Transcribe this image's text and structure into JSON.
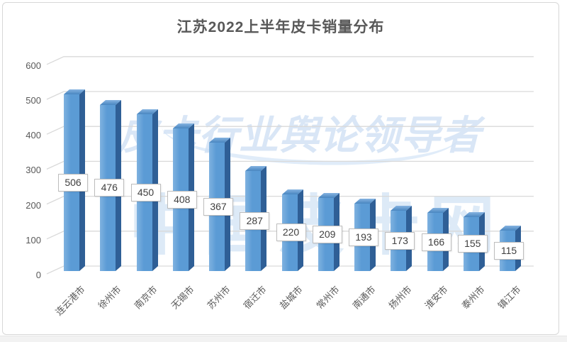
{
  "title": "江苏2022上半年皮卡销量分布",
  "watermark": {
    "tagline": "皮卡行业舆论领导者",
    "brand": "中国皮卡网"
  },
  "colors": {
    "bar_front": "#5b9bd5",
    "bar_side": "#2f5f96",
    "bar_top": "#4e8ac3",
    "gridline": "#d9d9d9",
    "axis_text": "#595959",
    "title_text": "#595959",
    "data_label_text": "#404040",
    "data_label_border": "#bdbdbd",
    "watermark_blue": "#cfe0f4"
  },
  "chart_data": {
    "type": "bar",
    "style": "3d-column",
    "title": "江苏2022上半年皮卡销量分布",
    "categories": [
      "连云港市",
      "徐州市",
      "南京市",
      "无锡市",
      "苏州市",
      "宿迁市",
      "盐城市",
      "常州市",
      "南通市",
      "扬州市",
      "淮安市",
      "泰州市",
      "镇江市"
    ],
    "values": [
      506,
      476,
      450,
      408,
      367,
      287,
      220,
      209,
      193,
      173,
      166,
      155,
      115
    ],
    "xlabel": "",
    "ylabel": "",
    "ylim": [
      0,
      600
    ],
    "ytick_interval": 100,
    "yticks": [
      0,
      100,
      200,
      300,
      400,
      500,
      600
    ],
    "grid": true,
    "legend": "none",
    "data_labels": "center"
  }
}
